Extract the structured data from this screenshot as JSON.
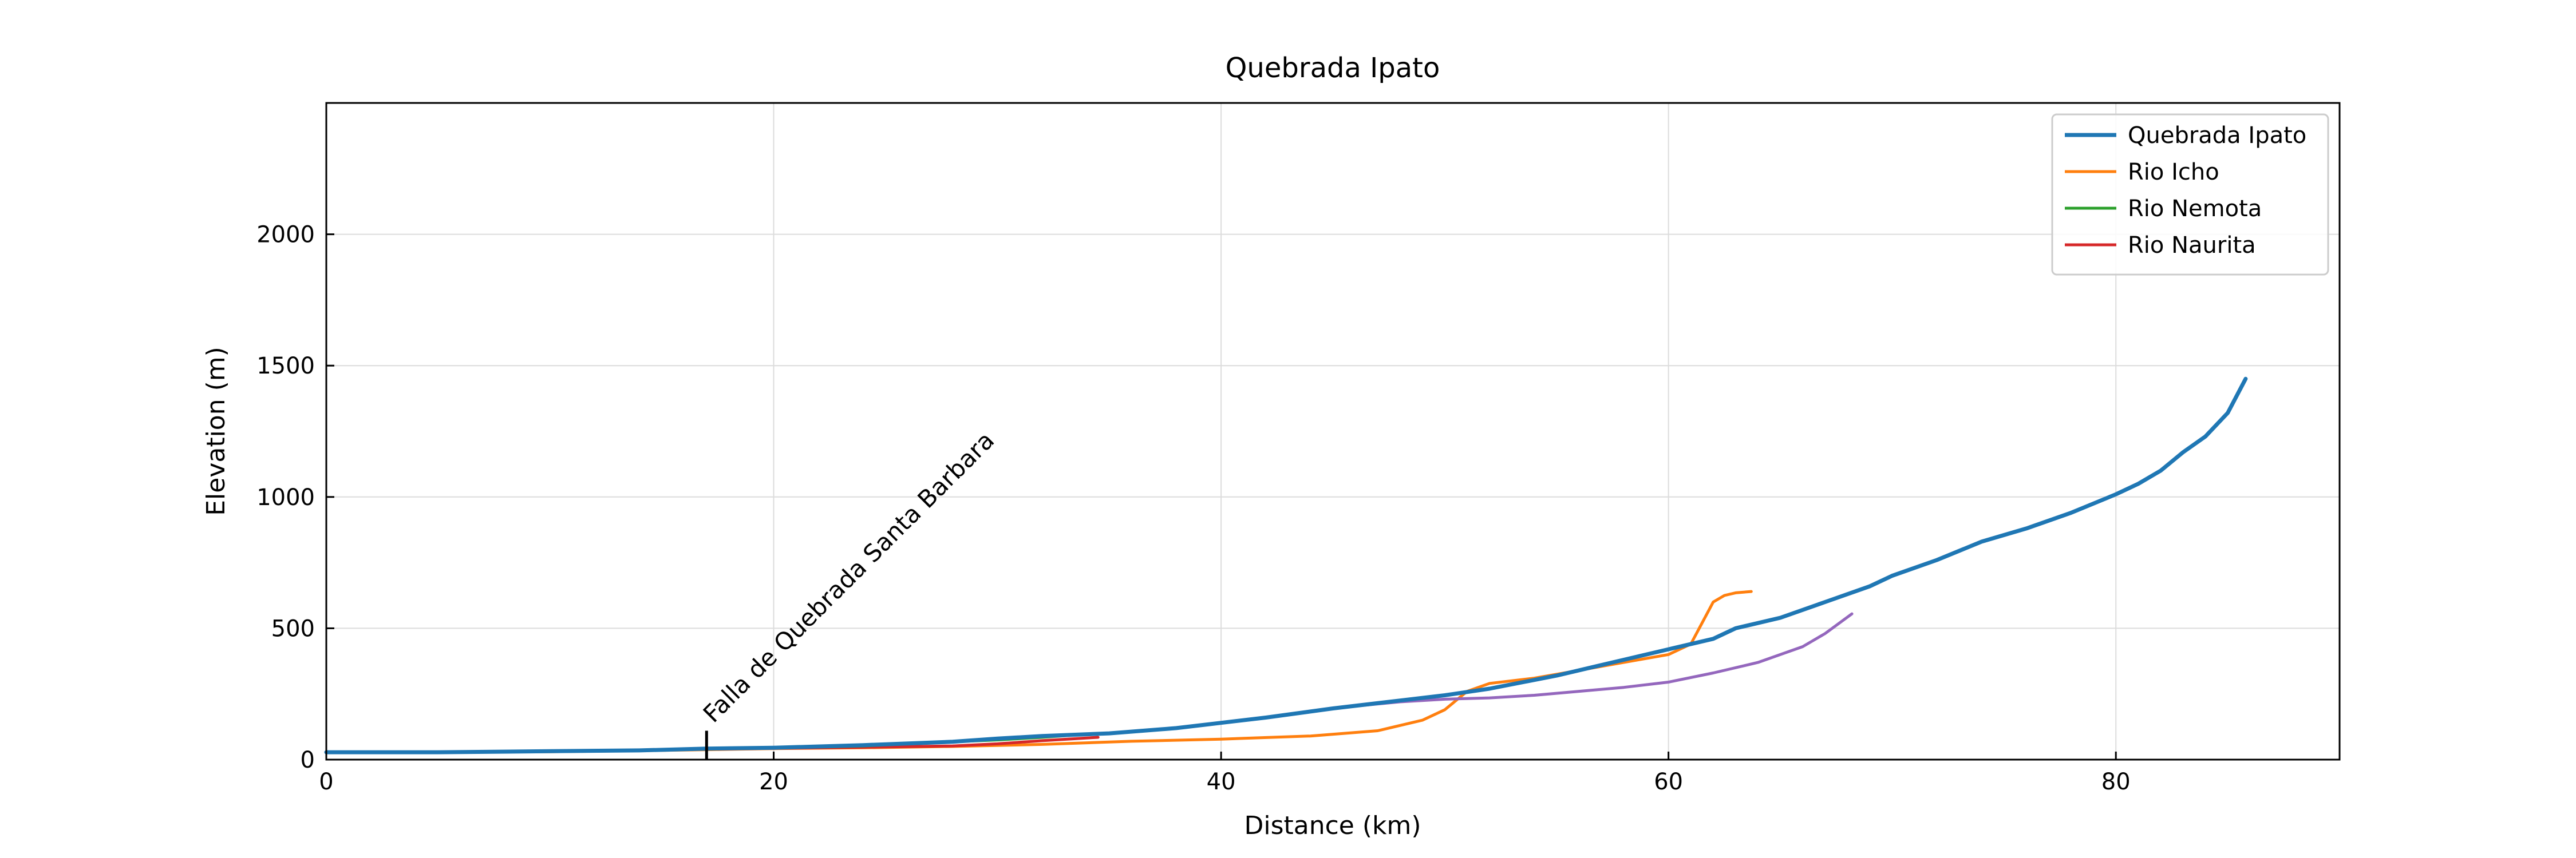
{
  "chart_data": {
    "type": "line",
    "title": "Quebrada Ipato",
    "xlabel": "Distance (km)",
    "ylabel": "Elevation (m)",
    "xlim": [
      0,
      90
    ],
    "ylim": [
      0,
      2500
    ],
    "xticks": [
      0,
      20,
      40,
      60,
      80
    ],
    "yticks": [
      0,
      500,
      1000,
      1500,
      2000
    ],
    "grid": true,
    "legend_position": "top-right",
    "annotation": {
      "text": "Falla de Quebrada Santa Barbara",
      "x": 17.0,
      "y_bottom": 0,
      "y_top": 110
    },
    "series": [
      {
        "name": "Quebrada Ipato",
        "color": "#1f77b4",
        "in_legend": true,
        "x": [
          0,
          5,
          10,
          14,
          17,
          20,
          24,
          28,
          30,
          32,
          35,
          38,
          40,
          42,
          45,
          48,
          50,
          52,
          55,
          58,
          60,
          62,
          63,
          65,
          67,
          69,
          70,
          72,
          74,
          76,
          78,
          80,
          81,
          82,
          83,
          84,
          85,
          85.8
        ],
        "y": [
          28,
          28,
          32,
          35,
          42,
          45,
          55,
          68,
          80,
          90,
          100,
          120,
          140,
          160,
          195,
          225,
          245,
          270,
          320,
          380,
          420,
          460,
          500,
          540,
          600,
          660,
          700,
          760,
          830,
          880,
          940,
          1010,
          1050,
          1100,
          1170,
          1230,
          1320,
          1450
        ]
      },
      {
        "name": "Rio Icho",
        "color": "#ff7f0e",
        "in_legend": true,
        "x": [
          5.2,
          10,
          14,
          17,
          20,
          24,
          28,
          32,
          36,
          40,
          44,
          47,
          49,
          50,
          51,
          52,
          54,
          56,
          58,
          60,
          61,
          61.5,
          62,
          62.5,
          63,
          63.7
        ],
        "y": [
          28,
          30,
          34,
          38,
          42,
          45,
          50,
          58,
          70,
          78,
          90,
          110,
          150,
          190,
          260,
          290,
          310,
          340,
          370,
          400,
          440,
          520,
          600,
          625,
          635,
          640
        ]
      },
      {
        "name": "Rio Nemota",
        "color": "#2ca02c",
        "in_legend": true,
        "x": [
          17,
          20,
          22,
          24,
          26,
          28,
          30,
          32,
          34.5
        ],
        "y": [
          42,
          45,
          48,
          52,
          60,
          68,
          75,
          85,
          100
        ]
      },
      {
        "name": "Rio Naurita",
        "color": "#d62728",
        "in_legend": true,
        "x": [
          17.5,
          20,
          24,
          28,
          30,
          32,
          34.5
        ],
        "y": [
          40,
          43,
          47,
          52,
          60,
          72,
          85
        ]
      },
      {
        "name": "",
        "color": "#9467bd",
        "in_legend": false,
        "x": [
          45.5,
          48,
          50,
          52,
          54,
          56,
          58,
          60,
          62,
          64,
          66,
          67,
          68.2
        ],
        "y": [
          200,
          220,
          230,
          235,
          245,
          260,
          275,
          295,
          330,
          370,
          430,
          480,
          555
        ]
      }
    ]
  }
}
